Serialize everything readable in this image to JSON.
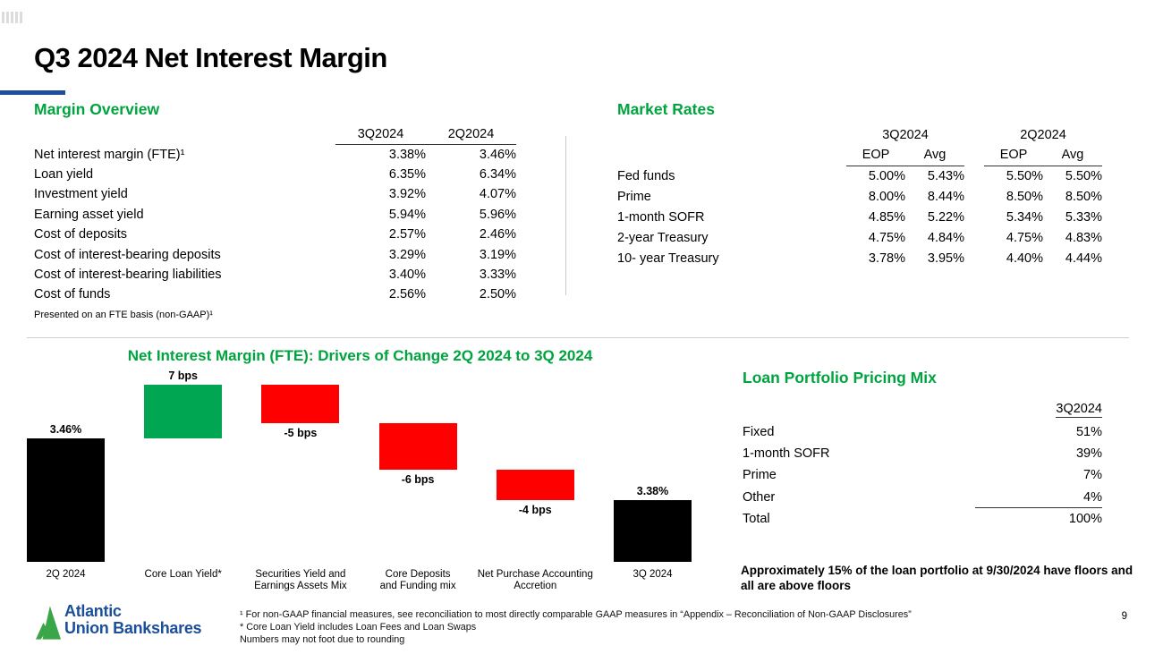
{
  "slide": {
    "title": "Q3 2024 Net Interest Margin",
    "page_number": "9"
  },
  "colors": {
    "heading_green": "#00a43e",
    "accent_blue": "#1f4e9c",
    "logo_blue": "#1b4f9c",
    "logo_green": "#3aa648",
    "bar_green": "#00a651",
    "bar_red": "#ff0000",
    "bar_black": "#000000"
  },
  "margin_overview": {
    "heading": "Margin Overview",
    "columns": [
      "3Q2024",
      "2Q2024"
    ],
    "rows": [
      {
        "label": "Net interest margin  (FTE)¹",
        "q3": "3.38%",
        "q2": "3.46%"
      },
      {
        "label": "Loan yield",
        "q3": "6.35%",
        "q2": "6.34%"
      },
      {
        "label": "Investment yield",
        "q3": "3.92%",
        "q2": "4.07%"
      },
      {
        "label": "Earning asset yield",
        "q3": "5.94%",
        "q2": "5.96%"
      },
      {
        "label": "Cost of deposits",
        "q3": "2.57%",
        "q2": "2.46%"
      },
      {
        "label": "Cost of interest-bearing deposits",
        "q3": "3.29%",
        "q2": "3.19%"
      },
      {
        "label": "Cost of interest-bearing liabilities",
        "q3": "3.40%",
        "q2": "3.33%"
      },
      {
        "label": "Cost of funds",
        "q3": "2.56%",
        "q2": "2.50%"
      }
    ],
    "footnote": "Presented on an FTE basis (non-GAAP)¹"
  },
  "market_rates": {
    "heading": "Market Rates",
    "group_columns": [
      "3Q2024",
      "2Q2024"
    ],
    "sub_columns": [
      "EOP",
      "Avg",
      "EOP",
      "Avg"
    ],
    "rows": [
      {
        "label": "Fed funds",
        "values": [
          "5.00%",
          "5.43%",
          "5.50%",
          "5.50%"
        ]
      },
      {
        "label": "Prime",
        "values": [
          "8.00%",
          "8.44%",
          "8.50%",
          "8.50%"
        ]
      },
      {
        "label": "1-month SOFR",
        "values": [
          "4.85%",
          "5.22%",
          "5.34%",
          "5.33%"
        ]
      },
      {
        "label": "2-year Treasury",
        "values": [
          "4.75%",
          "4.84%",
          "4.75%",
          "4.83%"
        ]
      },
      {
        "label": "10- year Treasury",
        "values": [
          "3.78%",
          "3.95%",
          "4.40%",
          "4.44%"
        ]
      }
    ]
  },
  "chart_data": {
    "type": "bar",
    "subtype": "waterfall",
    "title": "Net Interest Margin (FTE): Drivers of Change 2Q 2024  to 3Q 2024",
    "unit": "percent",
    "baseline": 3.3,
    "ylim": [
      3.3,
      3.55
    ],
    "grid": false,
    "legend": "none",
    "bars": [
      {
        "category": "2Q 2024",
        "kind": "total",
        "value": 3.46,
        "label": "3.46%",
        "label_position": "above",
        "color": "#000000"
      },
      {
        "category": "Core Loan Yield*",
        "kind": "delta",
        "delta_bps": 7,
        "label": "7 bps",
        "label_position": "above",
        "color": "#00a651"
      },
      {
        "category": "Securities Yield and\nEarnings Assets Mix",
        "kind": "delta",
        "delta_bps": -5,
        "label": "-5 bps",
        "label_position": "below",
        "color": "#ff0000"
      },
      {
        "category": "Core Deposits\nand Funding mix",
        "kind": "delta",
        "delta_bps": -6,
        "label": "-6 bps",
        "label_position": "below",
        "color": "#ff0000"
      },
      {
        "category": "Net Purchase Accounting\nAccretion",
        "kind": "delta",
        "delta_bps": -4,
        "label": "-4 bps",
        "label_position": "below",
        "color": "#ff0000"
      },
      {
        "category": "3Q 2024",
        "kind": "total",
        "value": 3.38,
        "label": "3.38%",
        "label_position": "above",
        "color": "#000000"
      }
    ]
  },
  "loan_mix": {
    "heading": "Loan Portfolio Pricing Mix",
    "column": "3Q2024",
    "rows": [
      {
        "label": "Fixed",
        "value": "51%"
      },
      {
        "label": "1-month SOFR",
        "value": "39%"
      },
      {
        "label": "Prime",
        "value": "7%"
      },
      {
        "label": "Other",
        "value": "4%"
      },
      {
        "label": "Total",
        "value": "100%"
      }
    ],
    "note": "Approximately 15% of the loan portfolio at 9/30/2024 have floors and all are above floors"
  },
  "footer": {
    "logo_line1": "Atlantic",
    "logo_line2": "Union Bankshares",
    "footnotes": [
      "¹ For non-GAAP financial measures, see reconciliation to most directly comparable GAAP measures in “Appendix – Reconciliation of Non-GAAP Disclosures”",
      "* Core Loan Yield includes Loan Fees and Loan Swaps",
      "Numbers may not foot due to rounding"
    ]
  }
}
